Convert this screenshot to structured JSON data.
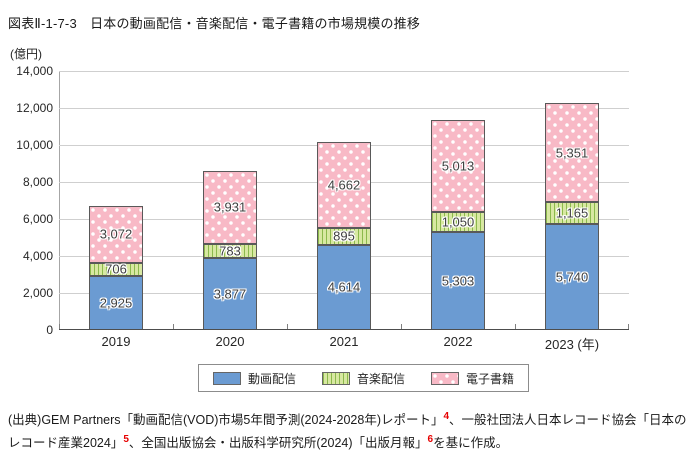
{
  "title": "図表Ⅱ-1-7-3　日本の動画配信・音楽配信・電子書籍の市場規模の推移",
  "unit_label": "(億円)",
  "chart_data": {
    "type": "bar",
    "stacked": true,
    "title": "日本の動画配信・音楽配信・電子書籍の市場規模の推移",
    "ylabel": "(億円)",
    "xlabel": "年",
    "ylim": [
      0,
      14000
    ],
    "ytick_step": 2000,
    "ytick_labels": [
      "0",
      "2,000",
      "4,000",
      "6,000",
      "8,000",
      "10,000",
      "12,000",
      "14,000"
    ],
    "grid": true,
    "legend_position": "bottom",
    "categories": [
      "2019",
      "2020",
      "2021",
      "2022",
      "2023"
    ],
    "last_category_suffix": " (年)",
    "series": [
      {
        "key": "video-streaming",
        "name": "動画配信",
        "pattern": "solid",
        "color": "#6b9bd2",
        "values": [
          2925,
          3877,
          4614,
          5303,
          5740
        ],
        "value_labels": [
          "2,925",
          "3,877",
          "4,614",
          "5,303",
          "5,740"
        ]
      },
      {
        "key": "music-streaming",
        "name": "音楽配信",
        "pattern": "vertical-stripes",
        "color": "#d8e8a2",
        "stripe_color": "#8cb94c",
        "values": [
          706,
          783,
          895,
          1050,
          1165
        ],
        "value_labels": [
          "706",
          "783",
          "895",
          "1,050",
          "1,165"
        ]
      },
      {
        "key": "ebook",
        "name": "電子書籍",
        "pattern": "polka-dots",
        "color": "#f8b9c6",
        "dot_color": "#ffffff",
        "values": [
          3072,
          3931,
          4662,
          5013,
          5351
        ],
        "value_labels": [
          "3,072",
          "3,931",
          "4,662",
          "5,013",
          "5,351"
        ]
      }
    ]
  },
  "legend": {
    "items": [
      {
        "key": "video-streaming",
        "label": "動画配信"
      },
      {
        "key": "music-streaming",
        "label": "音楽配信"
      },
      {
        "key": "ebook",
        "label": "電子書籍"
      }
    ]
  },
  "source": {
    "sup_color": "#e60000",
    "segments": [
      {
        "text": "(出典)GEM Partners「動画配信(VOD)市場5年間予測(2024-2028年)レポート」"
      },
      {
        "sup": "4"
      },
      {
        "text": "、一般社団法人日本レコード協会「日本のレコード産業2024」"
      },
      {
        "sup": "5"
      },
      {
        "text": "、全国出版協会・出版科学研究所(2024)「出版月報」"
      },
      {
        "sup": "6"
      },
      {
        "text": "を基に作成。"
      }
    ]
  }
}
